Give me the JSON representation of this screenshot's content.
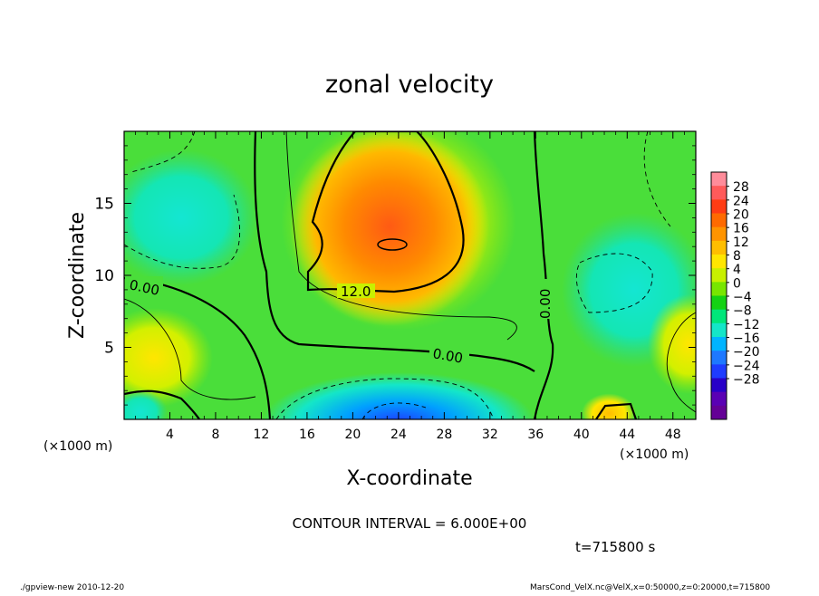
{
  "chart_data": {
    "type": "heatmap",
    "title": "zonal velocity",
    "xlabel": "X-coordinate",
    "ylabel": "Z-coordinate",
    "x_unit": "(×1000 m)",
    "y_unit": "(×1000 m)",
    "xlim": [
      0,
      50
    ],
    "ylim": [
      0,
      20
    ],
    "x_ticks": [
      "4",
      "8",
      "12",
      "16",
      "20",
      "24",
      "28",
      "32",
      "36",
      "40",
      "44",
      "48"
    ],
    "y_ticks": [
      "5",
      "10",
      "15"
    ],
    "colorbar": {
      "labels": [
        "28",
        "24",
        "20",
        "16",
        "12",
        "8",
        "4",
        "0",
        "−4",
        "−8",
        "−12",
        "−16",
        "−20",
        "−24",
        "−28"
      ],
      "colors": [
        "#ff8c9a",
        "#ff5a5a",
        "#ff3c14",
        "#ff6a00",
        "#ff9400",
        "#ffbe00",
        "#ffe600",
        "#c8f000",
        "#78e600",
        "#14d214",
        "#00e67a",
        "#14e6c8",
        "#00b4ff",
        "#1e78ff",
        "#1e3cff",
        "#2800c8",
        "#5a00b4",
        "#640096"
      ]
    },
    "contour_interval": "CONTOUR INTERVAL = 6.000E+00",
    "contour_labels": [
      "0.00",
      "12.0",
      "0.00",
      "0.00"
    ],
    "time": "t=715800 s",
    "features": [
      {
        "x": 24,
        "z": 12,
        "value": 18
      },
      {
        "x": 24,
        "z": 1,
        "value": -14
      },
      {
        "x": 2,
        "z": 5,
        "value": 10
      },
      {
        "x": 48,
        "z": 5,
        "value": 10
      },
      {
        "x": 8,
        "z": 13,
        "value": -6
      },
      {
        "x": 44,
        "z": 8,
        "value": -6
      },
      {
        "x": 44,
        "z": 0.5,
        "value": 12
      }
    ]
  },
  "footer": {
    "left": "./gpview-new   2010-12-20",
    "right": "MarsCond_VelX.nc@VelX,x=0:50000,z=0:20000,t=715800"
  }
}
